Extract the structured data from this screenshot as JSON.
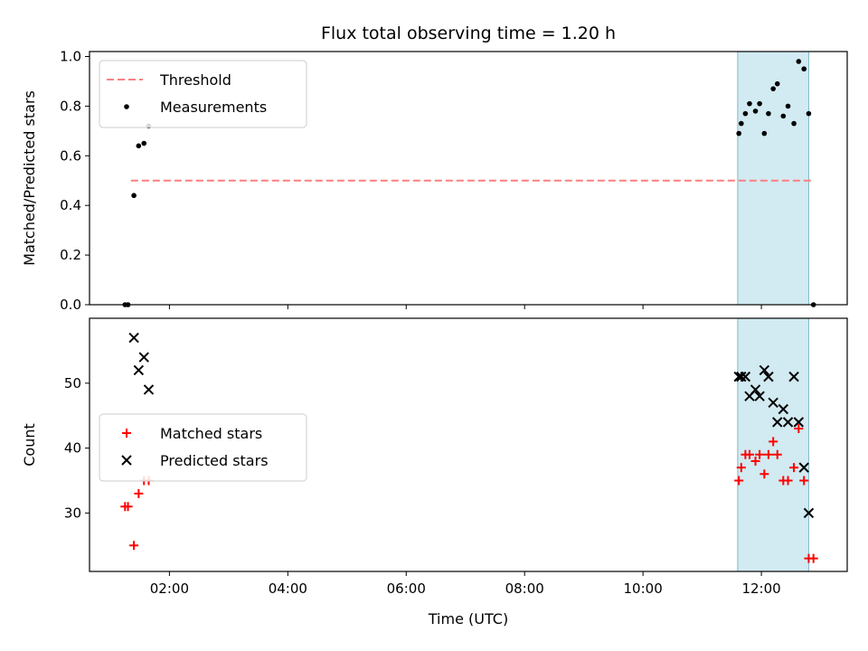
{
  "chart_data": {
    "type": "scatter",
    "title": "Flux total observing time = 1.20 h",
    "xlabel": "Time (UTC)",
    "x_unit": "hours UTC",
    "xlim": [
      0.65,
      13.45
    ],
    "x_ticks": [
      {
        "value": 2,
        "label": "02:00"
      },
      {
        "value": 4,
        "label": "04:00"
      },
      {
        "value": 6,
        "label": "06:00"
      },
      {
        "value": 8,
        "label": "08:00"
      },
      {
        "value": 10,
        "label": "10:00"
      },
      {
        "value": 12,
        "label": "12:00"
      }
    ],
    "shaded_interval": {
      "x": [
        11.6,
        12.8
      ],
      "color": "#add8e6"
    },
    "panels": [
      {
        "id": "top",
        "ylabel": "Matched/Predicted stars",
        "ylim": [
          0,
          1.02
        ],
        "y_ticks": [
          {
            "value": 0,
            "label": "0.0"
          },
          {
            "value": 0.2,
            "label": "0.2"
          },
          {
            "value": 0.4,
            "label": "0.4"
          },
          {
            "value": 0.6,
            "label": "0.6"
          },
          {
            "value": 0.8,
            "label": "0.8"
          },
          {
            "value": 1.0,
            "label": "1.0"
          }
        ],
        "legend": {
          "placement": "upper-left",
          "entries": [
            "Threshold",
            "Measurements"
          ]
        },
        "series": [
          {
            "name": "Threshold",
            "kind": "dashed-line",
            "color": "#ff7f7f",
            "points": [
              [
                1.35,
                0.5
              ],
              [
                12.85,
                0.5
              ]
            ]
          },
          {
            "name": "Measurements",
            "kind": "dot",
            "color": "#000000",
            "points": [
              [
                1.25,
                0
              ],
              [
                1.3,
                0
              ],
              [
                1.4,
                0.44
              ],
              [
                1.48,
                0.64
              ],
              [
                1.57,
                0.65
              ],
              [
                1.65,
                0.72
              ],
              [
                11.62,
                0.69
              ],
              [
                11.66,
                0.73
              ],
              [
                11.73,
                0.77
              ],
              [
                11.8,
                0.81
              ],
              [
                11.9,
                0.78
              ],
              [
                11.97,
                0.81
              ],
              [
                12.05,
                0.69
              ],
              [
                12.12,
                0.77
              ],
              [
                12.2,
                0.87
              ],
              [
                12.27,
                0.89
              ],
              [
                12.37,
                0.76
              ],
              [
                12.45,
                0.8
              ],
              [
                12.55,
                0.73
              ],
              [
                12.63,
                0.98
              ],
              [
                12.72,
                0.95
              ],
              [
                12.8,
                0.77
              ],
              [
                12.88,
                0
              ]
            ]
          }
        ]
      },
      {
        "id": "bottom",
        "ylabel": "Count",
        "ylim": [
          21,
          60
        ],
        "y_ticks": [
          {
            "value": 30,
            "label": "30"
          },
          {
            "value": 40,
            "label": "40"
          },
          {
            "value": 50,
            "label": "50"
          }
        ],
        "legend": {
          "placement": "center-left",
          "entries": [
            "Matched stars",
            "Predicted stars"
          ]
        },
        "series": [
          {
            "name": "Matched stars",
            "kind": "plus",
            "color": "#ff0000",
            "points": [
              [
                1.25,
                31
              ],
              [
                1.3,
                31
              ],
              [
                1.4,
                25
              ],
              [
                1.48,
                33
              ],
              [
                1.57,
                35
              ],
              [
                1.65,
                35
              ],
              [
                11.62,
                35
              ],
              [
                11.66,
                37
              ],
              [
                11.73,
                39
              ],
              [
                11.8,
                39
              ],
              [
                11.9,
                38
              ],
              [
                11.97,
                39
              ],
              [
                12.05,
                36
              ],
              [
                12.12,
                39
              ],
              [
                12.2,
                41
              ],
              [
                12.27,
                39
              ],
              [
                12.37,
                35
              ],
              [
                12.45,
                35
              ],
              [
                12.55,
                37
              ],
              [
                12.63,
                43
              ],
              [
                12.72,
                35
              ],
              [
                12.8,
                23
              ],
              [
                12.88,
                23
              ]
            ]
          },
          {
            "name": "Predicted stars",
            "kind": "x",
            "color": "#000000",
            "points": [
              [
                1.4,
                57
              ],
              [
                1.48,
                52
              ],
              [
                1.57,
                54
              ],
              [
                1.65,
                49
              ],
              [
                11.62,
                51
              ],
              [
                11.66,
                51
              ],
              [
                11.73,
                51
              ],
              [
                11.8,
                48
              ],
              [
                11.9,
                49
              ],
              [
                11.97,
                48
              ],
              [
                12.05,
                52
              ],
              [
                12.12,
                51
              ],
              [
                12.2,
                47
              ],
              [
                12.27,
                44
              ],
              [
                12.37,
                46
              ],
              [
                12.45,
                44
              ],
              [
                12.55,
                51
              ],
              [
                12.63,
                44
              ],
              [
                12.72,
                37
              ],
              [
                12.8,
                30
              ]
            ]
          }
        ]
      }
    ]
  }
}
